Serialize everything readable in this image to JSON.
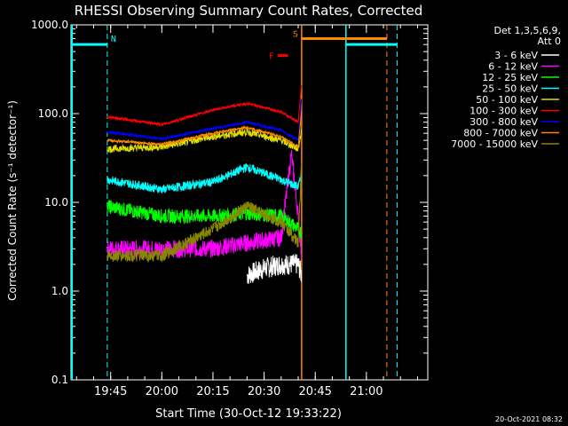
{
  "chart_data": {
    "type": "line",
    "title": "RHESSI Observing Summary Count Rates, Corrected",
    "xlabel": "Start Time (30-Oct-12 19:33:22)",
    "ylabel": "Corrected Count Rate (s⁻¹ detector⁻¹)",
    "yscale": "log",
    "ylim": [
      0.1,
      1000
    ],
    "xlim": [
      "19:33:22",
      "21:18:00"
    ],
    "y_ticks": [
      "0.1",
      "1.0",
      "10.0",
      "100.0",
      "1000.0"
    ],
    "x_ticks": [
      "19:45",
      "20:00",
      "20:15",
      "20:30",
      "20:45",
      "21:00"
    ],
    "legend_title": [
      "Det 1,3,5,6,9,",
      "Att 0"
    ],
    "legend_position": "right",
    "series": [
      {
        "name": "3 - 6 keV",
        "color": "#ffffff",
        "x": [
          "20:25",
          "20:30",
          "20:35",
          "20:40",
          "20:41"
        ],
        "values": [
          1.5,
          1.8,
          2.0,
          2.0,
          1.5
        ]
      },
      {
        "name": "6 - 12 keV",
        "color": "#ff00ff",
        "x": [
          "19:44",
          "20:00",
          "20:15",
          "20:25",
          "20:35",
          "20:38",
          "20:40",
          "20:41"
        ],
        "values": [
          3.0,
          3.0,
          3.0,
          3.5,
          4.0,
          35.0,
          7.0,
          2.5
        ]
      },
      {
        "name": "12 - 25 keV",
        "color": "#00ff00",
        "x": [
          "19:44",
          "20:00",
          "20:15",
          "20:25",
          "20:35",
          "20:40",
          "20:41"
        ],
        "values": [
          9.0,
          7.0,
          7.0,
          7.5,
          7.0,
          5.0,
          4.5
        ]
      },
      {
        "name": "25 - 50 keV",
        "color": "#00ffff",
        "x": [
          "19:44",
          "20:00",
          "20:15",
          "20:25",
          "20:35",
          "20:40",
          "20:41"
        ],
        "values": [
          18.0,
          14.0,
          17.0,
          25.0,
          18.0,
          15.0,
          20.0
        ]
      },
      {
        "name": "50 - 100 keV",
        "color": "#dddd00",
        "x": [
          "19:44",
          "20:00",
          "20:15",
          "20:25",
          "20:35",
          "20:40",
          "20:41"
        ],
        "values": [
          40.0,
          42.0,
          55.0,
          62.0,
          50.0,
          40.0,
          65.0
        ]
      },
      {
        "name": "100 - 300 keV",
        "color": "#ff0000",
        "x": [
          "19:44",
          "20:00",
          "20:15",
          "20:25",
          "20:35",
          "20:40",
          "20:41"
        ],
        "values": [
          92.0,
          75.0,
          110.0,
          130.0,
          105.0,
          80.0,
          220.0
        ]
      },
      {
        "name": "300 - 800 keV",
        "color": "#0000ff",
        "x": [
          "19:44",
          "20:00",
          "20:15",
          "20:25",
          "20:35",
          "20:40",
          "20:41"
        ],
        "values": [
          62.0,
          52.0,
          68.0,
          80.0,
          65.0,
          50.0,
          150.0
        ]
      },
      {
        "name": "800 - 7000 keV",
        "color": "#ff8800",
        "x": [
          "19:44",
          "20:00",
          "20:15",
          "20:25",
          "20:35",
          "20:40",
          "20:41"
        ],
        "values": [
          50.0,
          45.0,
          60.0,
          70.0,
          55.0,
          42.0,
          110.0
        ]
      },
      {
        "name": "7000 - 15000 keV",
        "color": "#888800",
        "x": [
          "19:44",
          "20:00",
          "20:15",
          "20:25",
          "20:35",
          "20:40",
          "20:41"
        ],
        "values": [
          2.5,
          2.5,
          5.0,
          9.0,
          6.0,
          3.5,
          30.0
        ]
      }
    ],
    "annotations": [
      {
        "label": "N",
        "color": "#00ffff",
        "y": 600
      },
      {
        "label": "F",
        "color": "#ff0000",
        "y": 450
      },
      {
        "label": "S",
        "color": "#ff8800",
        "y": 700
      }
    ],
    "timestamp": "20-Oct-2021 08:32"
  }
}
